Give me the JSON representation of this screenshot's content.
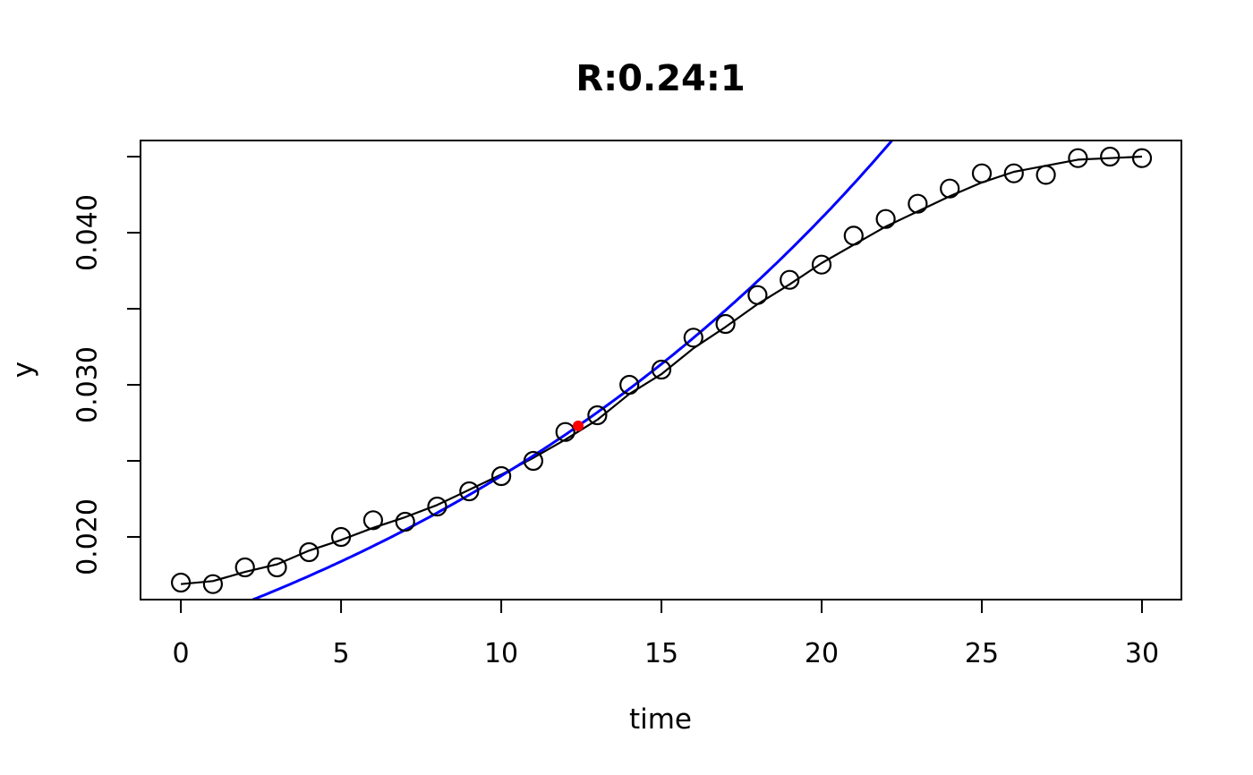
{
  "chart_data": {
    "type": "scatter",
    "title": "R:0.24:1",
    "xlabel": "time",
    "ylabel": "y",
    "xlim": [
      -1.26,
      31.23
    ],
    "ylim": [
      0.01588,
      0.04606
    ],
    "x_ticks": [
      0,
      5,
      10,
      15,
      20,
      25,
      30
    ],
    "y_ticks": [
      0.02,
      0.025,
      0.03,
      0.035,
      0.04,
      0.045
    ],
    "y_tick_labels": [
      "0.020",
      "",
      "0.030",
      "",
      "0.040",
      ""
    ],
    "grid": false,
    "legend": null,
    "frame": "box",
    "colors": {
      "points": "#000000",
      "fit_curve": "#000000",
      "exp_curve": "#0000FF",
      "highlight": "#FF0000"
    },
    "series": [
      {
        "name": "observed points",
        "type": "scatter",
        "marker": "open-circle",
        "color": "#000000",
        "x": [
          0,
          1,
          2,
          3,
          4,
          5,
          6,
          7,
          8,
          9,
          10,
          11,
          12,
          13,
          14,
          15,
          16,
          17,
          18,
          19,
          20,
          21,
          22,
          23,
          24,
          25,
          26,
          27,
          28,
          29,
          30
        ],
        "y": [
          0.017,
          0.0169,
          0.018,
          0.018,
          0.019,
          0.02,
          0.0211,
          0.021,
          0.022,
          0.023,
          0.024,
          0.025,
          0.0269,
          0.028,
          0.03,
          0.031,
          0.0331,
          0.034,
          0.0359,
          0.0369,
          0.0379,
          0.0398,
          0.0409,
          0.0419,
          0.0429,
          0.0439,
          0.0439,
          0.0438,
          0.0449,
          0.045,
          0.0449
        ]
      },
      {
        "name": "fitted logistic curve",
        "type": "line",
        "color": "#000000",
        "x": [
          0,
          1,
          2,
          3,
          4,
          5,
          6,
          7,
          8,
          9,
          10,
          11,
          12,
          13,
          14,
          15,
          16,
          17,
          18,
          19,
          20,
          21,
          22,
          23,
          24,
          25,
          26,
          27,
          28,
          29,
          30
        ],
        "y": [
          0.0169,
          0.0171,
          0.0177,
          0.0182,
          0.0191,
          0.0198,
          0.0206,
          0.0213,
          0.0221,
          0.0231,
          0.0241,
          0.0252,
          0.0264,
          0.0277,
          0.0294,
          0.0307,
          0.0324,
          0.0338,
          0.0353,
          0.0366,
          0.038,
          0.0392,
          0.0404,
          0.0414,
          0.0424,
          0.0433,
          0.044,
          0.0444,
          0.0448,
          0.0449,
          0.045
        ]
      },
      {
        "name": "exponential curve",
        "type": "line",
        "color": "#0000FF",
        "model": "y = y_ref * exp(rate * (t - t_ref))",
        "params": {
          "y_ref": 0.0273,
          "t_ref": 12.4,
          "rate": 0.0534
        },
        "t_range": [
          2.2,
          22.4
        ]
      }
    ],
    "highlight_point": {
      "x": 12.4,
      "y": 0.0273,
      "color": "#FF0000",
      "marker": "filled-circle"
    }
  }
}
